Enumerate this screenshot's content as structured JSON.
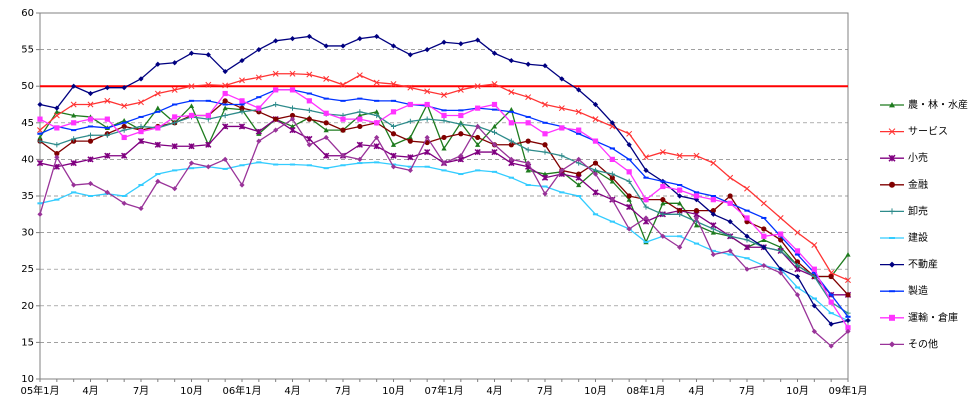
{
  "chart_data": {
    "type": "line",
    "categories": [
      "05年1月",
      null,
      null,
      "4月",
      null,
      null,
      "7月",
      null,
      null,
      "10月",
      null,
      null,
      "06年1月",
      null,
      null,
      "4月",
      null,
      null,
      "7月",
      null,
      null,
      "10月",
      null,
      null,
      "07年1月",
      null,
      null,
      "4月",
      null,
      null,
      "7月",
      null,
      null,
      "10月",
      null,
      null,
      "08年1月",
      null,
      null,
      "4月",
      null,
      null,
      "7月",
      null,
      null,
      "10月",
      null,
      null,
      "09年1月"
    ],
    "ylim": [
      10,
      60
    ],
    "yticks": [
      10,
      15,
      20,
      25,
      30,
      35,
      40,
      45,
      50,
      55,
      60
    ],
    "grid": true,
    "reference_line": {
      "value": 50,
      "color": "#ff0000"
    },
    "legend": "right",
    "series": [
      {
        "name": "農・林・水産",
        "color": "#1e7b1e",
        "marker": "triangle",
        "values": [
          43,
          46.5,
          46,
          45.8,
          44.3,
          45.3,
          44,
          47,
          45,
          47.3,
          42,
          47,
          46.8,
          43.5,
          45.5,
          44.5,
          45.7,
          44,
          44,
          46,
          46.5,
          42,
          43,
          47.5,
          41.5,
          45,
          42,
          44.5,
          46.8,
          38.5,
          38,
          38.3,
          36.5,
          38.5,
          37,
          34.5,
          28.7,
          34,
          34,
          31,
          30,
          29.5,
          28,
          29,
          28,
          25.5,
          24,
          24,
          27
        ]
      },
      {
        "name": "サービス",
        "color": "#ff3333",
        "marker": "x",
        "values": [
          44,
          46,
          47.5,
          47.5,
          48,
          47.3,
          47.8,
          49,
          49.5,
          50,
          50.2,
          50.1,
          50.8,
          51.2,
          51.7,
          51.7,
          51.6,
          51,
          50.2,
          51.5,
          50.5,
          50.3,
          49.8,
          49.3,
          48.8,
          49.5,
          50,
          50.3,
          49.2,
          48.5,
          47.5,
          47,
          46.5,
          45.5,
          44.5,
          43.5,
          40.3,
          41,
          40.5,
          40.5,
          39.5,
          37.5,
          36,
          34,
          32,
          30,
          28.3,
          24.5,
          23.5
        ]
      },
      {
        "name": "小売",
        "color": "#800080",
        "marker": "star",
        "values": [
          39.5,
          39,
          39.5,
          40,
          40.5,
          40.5,
          42.5,
          42,
          41.8,
          41.8,
          42,
          44.5,
          44.5,
          43.8,
          45.5,
          44,
          42.8,
          40.5,
          40.5,
          42,
          41.8,
          40.5,
          40.3,
          41,
          39.5,
          40,
          41,
          41,
          39.5,
          39,
          37.5,
          38,
          37.5,
          35.5,
          34.5,
          33.5,
          31.5,
          32.5,
          33,
          32.5,
          31,
          29.5,
          28,
          28,
          27.5,
          25,
          24,
          21.5,
          21.5
        ]
      },
      {
        "name": "金融",
        "color": "#800000",
        "marker": "circle",
        "values": [
          42.5,
          40.8,
          42.5,
          42.5,
          43.5,
          44.5,
          44,
          44.5,
          45,
          46,
          46,
          48,
          47,
          46.5,
          45.5,
          46,
          45.5,
          45,
          44,
          44.5,
          45,
          43.5,
          42.5,
          42.3,
          43,
          43.5,
          43,
          42,
          42,
          42.5,
          42,
          38.5,
          38,
          39.5,
          37.5,
          35,
          34.5,
          34.5,
          33,
          33,
          33,
          35,
          31.5,
          30.5,
          29,
          26,
          24,
          24,
          21.5
        ]
      },
      {
        "name": "卸売",
        "color": "#2e8b8b",
        "marker": "plus",
        "values": [
          42.5,
          42,
          42.8,
          43.3,
          43.3,
          44,
          44.5,
          44.3,
          45,
          45.8,
          45.5,
          46,
          46.5,
          46.8,
          47.5,
          47,
          46.7,
          46.2,
          46,
          46.5,
          46,
          44.5,
          45.2,
          45.5,
          45.3,
          44.8,
          44.5,
          43.7,
          42.5,
          41.3,
          41,
          40.5,
          39.5,
          38.5,
          38,
          37,
          33.5,
          32.5,
          32.5,
          31.5,
          30.5,
          29.5,
          29,
          28,
          27.5,
          25.5,
          24,
          20.5,
          19
        ]
      },
      {
        "name": "建設",
        "color": "#33ccff",
        "marker": "dash",
        "values": [
          34,
          34.5,
          35.5,
          35,
          35.3,
          35,
          36.5,
          38,
          38.5,
          38.8,
          39,
          38.7,
          39.2,
          39.6,
          39.3,
          39.3,
          39.2,
          38.8,
          39.2,
          39.5,
          39.6,
          39.3,
          39,
          39,
          38.5,
          38,
          38.5,
          38.3,
          37.5,
          36.5,
          36.3,
          35.5,
          35,
          32.5,
          31.5,
          30.5,
          28.7,
          29.5,
          29.5,
          28.5,
          27.5,
          27,
          26.5,
          25.5,
          25,
          22.5,
          21,
          19,
          18
        ]
      },
      {
        "name": "不動産",
        "color": "#000080",
        "marker": "diamond",
        "values": [
          47.5,
          47,
          50,
          49,
          49.8,
          49.8,
          51,
          53,
          53.2,
          54.5,
          54.3,
          52,
          53.5,
          55,
          56.2,
          56.5,
          56.8,
          55.5,
          55.5,
          56.5,
          56.8,
          55.5,
          54.3,
          55,
          56,
          55.8,
          56.3,
          54.5,
          53.5,
          53,
          52.8,
          51,
          49.5,
          47.5,
          45,
          42,
          38.5,
          37,
          35,
          34.5,
          32.5,
          31.5,
          29.5,
          28,
          25,
          24,
          20,
          17.5,
          18
        ]
      },
      {
        "name": "製造",
        "color": "#0033ff",
        "marker": "dash",
        "values": [
          43.5,
          44.5,
          44,
          44.5,
          44.3,
          45,
          45.8,
          46.5,
          47.5,
          48,
          48,
          47.5,
          47.5,
          48.5,
          49.5,
          49.5,
          49,
          48.3,
          48,
          48.3,
          48,
          48,
          47.5,
          47.3,
          46.7,
          46.7,
          47,
          46.8,
          46.5,
          45.8,
          45,
          44.5,
          43.5,
          42.5,
          41.5,
          40,
          37.5,
          37,
          36.5,
          35.5,
          35,
          34,
          33,
          32,
          29.5,
          27,
          24.5,
          21.5,
          18.5
        ]
      },
      {
        "name": "運輸・倉庫",
        "color": "#ff33ff",
        "marker": "square",
        "values": [
          45.5,
          44.3,
          45,
          45.5,
          45.5,
          43,
          43.8,
          44.3,
          45.8,
          46,
          46,
          49,
          48,
          47,
          49.5,
          49.5,
          48,
          46.3,
          45.5,
          45.5,
          45,
          46.5,
          47.5,
          47.5,
          46,
          46,
          47,
          47.5,
          45,
          45,
          43.5,
          44.3,
          44,
          42.5,
          40,
          38.3,
          34.5,
          36.3,
          35.8,
          35,
          34.5,
          34,
          32,
          29.5,
          29.8,
          27.5,
          25,
          20.5,
          17
        ]
      },
      {
        "name": "その他",
        "color": "#993399",
        "marker": "diamond",
        "values": [
          32.5,
          40.3,
          36.5,
          36.7,
          35.5,
          34,
          33.3,
          37,
          36,
          39.5,
          39,
          40,
          36.5,
          42.5,
          44,
          45.5,
          42,
          43,
          40.5,
          40,
          43,
          39,
          38.5,
          43,
          39.5,
          40.5,
          44.5,
          42,
          40,
          39.5,
          35.3,
          38.5,
          40,
          38,
          34.5,
          30.5,
          32,
          29.5,
          28,
          32,
          27,
          27.5,
          25,
          25.5,
          24.5,
          21.5,
          16.5,
          14.5,
          16.5
        ]
      }
    ]
  }
}
